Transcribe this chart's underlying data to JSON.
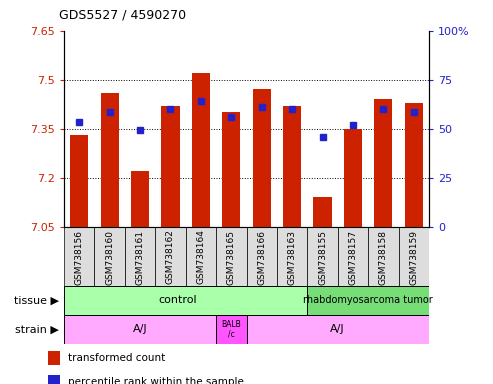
{
  "title": "GDS5527 / 4590270",
  "samples": [
    "GSM738156",
    "GSM738160",
    "GSM738161",
    "GSM738162",
    "GSM738164",
    "GSM738165",
    "GSM738166",
    "GSM738163",
    "GSM738155",
    "GSM738157",
    "GSM738158",
    "GSM738159"
  ],
  "bar_values": [
    7.33,
    7.46,
    7.22,
    7.42,
    7.52,
    7.4,
    7.47,
    7.42,
    7.14,
    7.35,
    7.44,
    7.43
  ],
  "blue_dot_values": [
    7.37,
    7.4,
    7.345,
    7.41,
    7.435,
    7.385,
    7.415,
    7.41,
    7.325,
    7.36,
    7.41,
    7.4
  ],
  "ymin": 7.05,
  "ymax": 7.65,
  "yticks": [
    7.05,
    7.2,
    7.35,
    7.5,
    7.65
  ],
  "ytick_labels": [
    "7.05",
    "7.2",
    "7.35",
    "7.5",
    "7.65"
  ],
  "y2ticks": [
    0,
    25,
    50,
    75,
    100
  ],
  "y2tick_labels": [
    "0",
    "25",
    "50",
    "75",
    "100%"
  ],
  "bar_color": "#cc2200",
  "dot_color": "#2222cc",
  "bar_bottom": 7.05,
  "dotted_lines": [
    7.2,
    7.35,
    7.5
  ],
  "tissue_labels": [
    "control",
    "rhabdomyosarcoma tumor"
  ],
  "tissue_control_cols": 8,
  "tissue_color_control": "#aaffaa",
  "tissue_color_tumor": "#77dd77",
  "strain_aj1_cols": 5,
  "strain_balbc_cols": 1,
  "strain_aj2_cols": 6,
  "strain_color_aj": "#ffaaff",
  "strain_color_balbc": "#ff55ff",
  "legend_red": "transformed count",
  "legend_blue": "percentile rank within the sample",
  "xlabel_tissue": "tissue",
  "xlabel_strain": "strain",
  "bg_color": "#ffffff",
  "tick_label_gray": "#aaaaaa",
  "xticklabel_bg": "#dddddd"
}
